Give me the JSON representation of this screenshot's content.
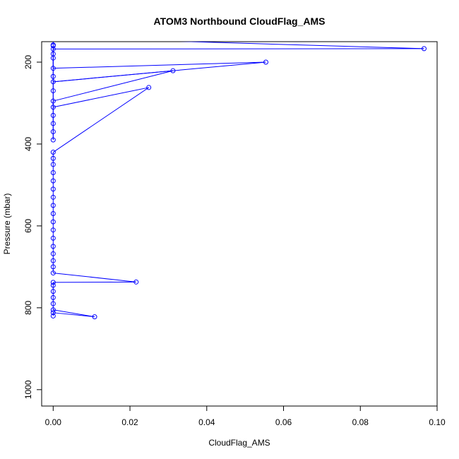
{
  "chart_data": {
    "type": "line",
    "title": "ATOM3 Northbound CloudFlag_AMS",
    "xlabel": "CloudFlag_AMS",
    "ylabel": "Pressure (mbar)",
    "xlim": [
      -0.003,
      0.1
    ],
    "ylim": [
      1040,
      150
    ],
    "y_reversed": true,
    "x_ticks": [
      0.0,
      0.02,
      0.04,
      0.06,
      0.08,
      0.1
    ],
    "x_tick_labels": [
      "0.00",
      "0.02",
      "0.04",
      "0.06",
      "0.08",
      "0.10"
    ],
    "y_ticks": [
      200,
      400,
      600,
      800,
      1000
    ],
    "y_tick_labels": [
      "200",
      "400",
      "600",
      "800",
      "1000"
    ],
    "series_color": "#0000ff",
    "marker": "open-circle",
    "series": [
      {
        "points": [
          {
            "x": 0.0,
            "y": 820
          },
          {
            "x": 0.0,
            "y": 812
          },
          {
            "x": 0.0108,
            "y": 822
          },
          {
            "x": 0.0,
            "y": 805
          },
          {
            "x": 0.0,
            "y": 790
          },
          {
            "x": 0.0,
            "y": 775
          },
          {
            "x": 0.0,
            "y": 760
          },
          {
            "x": 0.0,
            "y": 745
          },
          {
            "x": 0.0,
            "y": 738
          },
          {
            "x": 0.0216,
            "y": 737
          },
          {
            "x": 0.0,
            "y": 715
          },
          {
            "x": 0.0,
            "y": 700
          },
          {
            "x": 0.0,
            "y": 685
          },
          {
            "x": 0.0,
            "y": 668
          },
          {
            "x": 0.0,
            "y": 650
          },
          {
            "x": 0.0,
            "y": 630
          },
          {
            "x": 0.0,
            "y": 610
          },
          {
            "x": 0.0,
            "y": 590
          },
          {
            "x": 0.0,
            "y": 570
          },
          {
            "x": 0.0,
            "y": 550
          },
          {
            "x": 0.0,
            "y": 530
          },
          {
            "x": 0.0,
            "y": 510
          },
          {
            "x": 0.0,
            "y": 490
          },
          {
            "x": 0.0,
            "y": 470
          },
          {
            "x": 0.0,
            "y": 450
          },
          {
            "x": 0.0,
            "y": 435
          },
          {
            "x": 0.0,
            "y": 420
          },
          {
            "x": 0.0249,
            "y": 262
          },
          {
            "x": 0.0,
            "y": 310
          },
          {
            "x": 0.0,
            "y": 295
          },
          {
            "x": 0.0312,
            "y": 221
          },
          {
            "x": 0.0,
            "y": 248
          },
          {
            "x": 0.0554,
            "y": 200
          },
          {
            "x": 0.0,
            "y": 215
          },
          {
            "x": 0.0,
            "y": 190
          },
          {
            "x": 0.0,
            "y": 168
          },
          {
            "x": 0.0966,
            "y": 167
          },
          {
            "x": 0.0,
            "y": 140
          },
          {
            "x": 0.0,
            "y": 158
          },
          {
            "x": 0.0,
            "y": 330
          },
          {
            "x": 0.0,
            "y": 350
          },
          {
            "x": 0.0,
            "y": 370
          },
          {
            "x": 0.0,
            "y": 390
          },
          {
            "x": 0.0,
            "y": 270
          },
          {
            "x": 0.0,
            "y": 235
          },
          {
            "x": 0.0,
            "y": 180
          },
          {
            "x": 0.0,
            "y": 160
          }
        ]
      }
    ]
  }
}
